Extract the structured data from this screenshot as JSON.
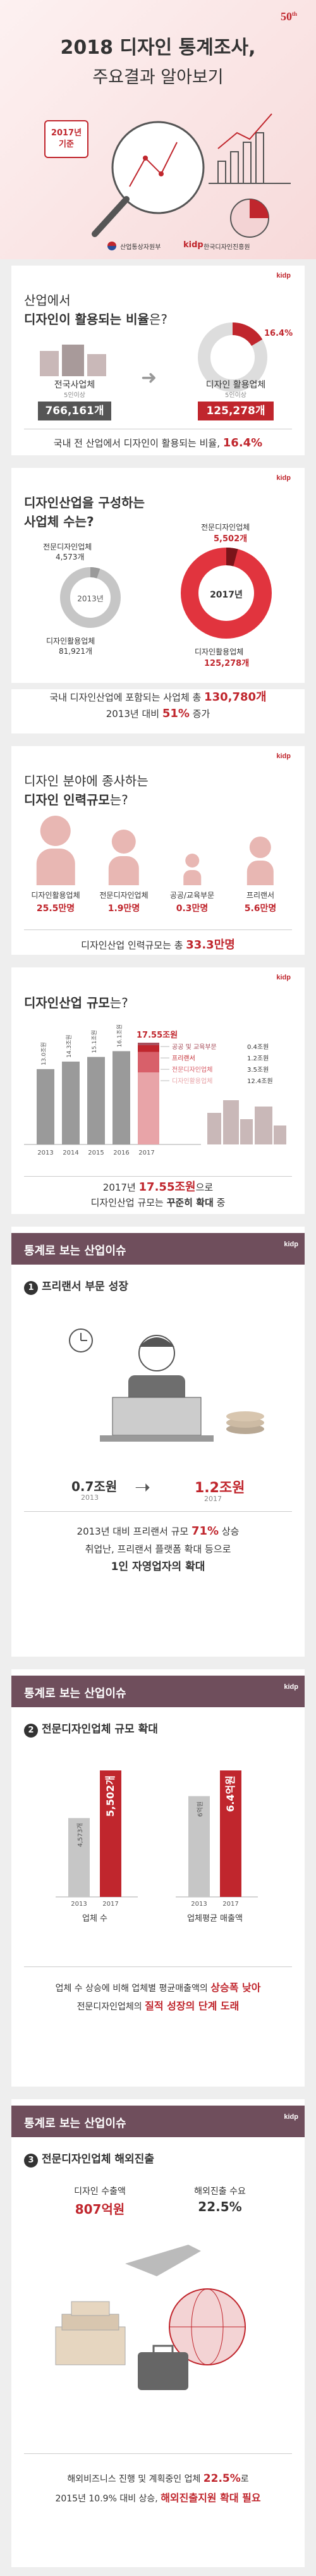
{
  "cover": {
    "title_line1": "2018 디자인 통계조사,",
    "title_line2": "주요결과 알아보기",
    "badge_line1": "2017년",
    "badge_line2": "기준",
    "badge_50": "50",
    "ministry": "산업통상자원부",
    "kidp_logo": "kidp",
    "kidp_name": "한국디자인진흥원"
  },
  "section1": {
    "kidp": "kidp",
    "title_line1": "산업에서",
    "title_line2_bold": "디자인이 활용되는 비율",
    "title_suffix": "은?",
    "left_label": "전국사업체",
    "left_sub": "5인이상",
    "left_value": "766,161개",
    "right_label": "디자인 활용업체",
    "right_sub": "5인이상",
    "right_value": "125,278개",
    "pie_percent": "16.4%",
    "pie_fraction": 0.164,
    "summary_prefix": "국내 전 산업에서 디자인이 활용되는 비율, ",
    "summary_value": "16.4%"
  },
  "section2": {
    "kidp": "kidp",
    "title_line1": "디자인산업을 구성하는",
    "title_line2": "사업체 수는?",
    "year_left": "2013년",
    "year_right": "2017년",
    "left_top_label": "전문디자인업체",
    "left_top_value": "4,573개",
    "left_bottom_label": "디자인활용업체",
    "left_bottom_value": "81,921개",
    "right_top_label": "전문디자인업체",
    "right_top_value": "5,502개",
    "right_bottom_label": "디자인활용업체",
    "right_bottom_value": "125,278개",
    "summary_line1_prefix": "국내 디자인산업에 포함되는 사업체 총 ",
    "summary_line1_value": "130,780개",
    "summary_line2_prefix": "2013년 대비 ",
    "summary_line2_value": "51%",
    "summary_line2_suffix": " 증가"
  },
  "section3": {
    "kidp": "kidp",
    "title_line1": "디자인 분야에 종사하는",
    "title_line2_bold": "디자인 인력규모",
    "title_suffix": "는?",
    "people": [
      {
        "label": "디자인활용업체",
        "value": "25.5만명",
        "height": 1.0
      },
      {
        "label": "전문디자인업체",
        "value": "1.9만명",
        "height": 0.8
      },
      {
        "label": "공공/교육부문",
        "value": "0.3만명",
        "height": 0.45
      },
      {
        "label": "프리랜서",
        "value": "5.6만명",
        "height": 0.7
      }
    ],
    "summary_prefix": "디자인산업 인력규모는 총 ",
    "summary_value": "33.3만명"
  },
  "section4": {
    "kidp": "kidp",
    "title_bold": "디자인산업 규모",
    "title_suffix": "는?",
    "chart_data": {
      "type": "bar",
      "categories": [
        "2013",
        "2014",
        "2015",
        "2016",
        "2017"
      ],
      "values": [
        13.0,
        14.3,
        15.1,
        16.1,
        17.55
      ],
      "value_labels": [
        "13.0조원",
        "14.3조원",
        "15.1조원",
        "16.1조원",
        "17.55조원"
      ],
      "ylim": [
        0,
        18
      ],
      "stack_2017": [
        {
          "name": "공공 및 교육부문",
          "value": "0.4조원",
          "color": "#a54856"
        },
        {
          "name": "프리랜서",
          "value": "1.2조원",
          "color": "#c0262d"
        },
        {
          "name": "전문디자인업체",
          "value": "3.5조원",
          "color": "#d8606a"
        },
        {
          "name": "디자인활용업체",
          "value": "12.4조원",
          "color": "#e8a4a8"
        }
      ]
    },
    "summary_line1_prefix": "2017년 ",
    "summary_line1_value": "17.55조원",
    "summary_line1_suffix": "으로",
    "summary_line2_prefix": "디자인산업 규모는 ",
    "summary_line2_value": "꾸준히 확대",
    "summary_line2_suffix": " 중"
  },
  "section5": {
    "kidp": "kidp",
    "header": "통계로 보는 산업이슈",
    "num": "1",
    "subtitle": "프리랜서 부문 성장",
    "left_value": "0.7조원",
    "left_year": "2013",
    "right_value": "1.2조원",
    "right_year": "2017",
    "summary_line1_prefix": "2013년 대비 프리랜서 규모 ",
    "summary_line1_value": "71%",
    "summary_line1_suffix": " 상승",
    "summary_line2": "취업난, 프리랜서 플랫폼 확대 등으로",
    "summary_line3": "1인 자영업자의 확대"
  },
  "section6": {
    "kidp": "kidp",
    "header": "통계로 보는 산업이슈",
    "num": "2",
    "subtitle": "전문디자인업체 규모 확대",
    "chart_data": {
      "type": "bar",
      "groups": [
        {
          "label": "업체 수",
          "categories": [
            "2013",
            "2017"
          ],
          "values": [
            4573,
            5502
          ],
          "value_labels": [
            "4,573개",
            "5,502개"
          ]
        },
        {
          "label": "업체평균 매출액",
          "categories": [
            "2013",
            "2017"
          ],
          "values": [
            6.0,
            6.4
          ],
          "value_labels": [
            "6억원",
            "6.4억원"
          ]
        }
      ]
    },
    "summary_line1_prefix": "업체 수 상승에 비해 업체별 평균매출액의 ",
    "summary_line1_value": "상승폭 낮아",
    "summary_line2_prefix": "전문디자인업체의 ",
    "summary_line2_value": "질적 성장의 단계 도래"
  },
  "section7": {
    "kidp": "kidp",
    "header": "통계로 보는 산업이슈",
    "num": "3",
    "subtitle": "전문디자인업체 해외진출",
    "left_label": "디자인 수출액",
    "left_value": "807억원",
    "right_label": "해외진출 수요",
    "right_value": "22.5%",
    "summary_line1_prefix": "해외비즈니스 진행 및 계획중인 업체 ",
    "summary_line1_value": "22.5%",
    "summary_line1_suffix": "로",
    "summary_line2_prefix": "2015년 10.9% 대비 상승, ",
    "summary_line2_value": "해외진출지원 확대 필요"
  },
  "colors": {
    "accent": "#c0262d",
    "pink": "#e8a4a8",
    "light_pink": "#f3d3d4",
    "grey": "#8a8a8a",
    "header_bar": "#6f4e5c"
  }
}
